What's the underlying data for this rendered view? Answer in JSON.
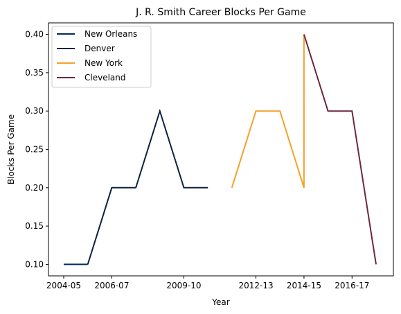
{
  "chart_data": {
    "type": "line",
    "title": "J. R. Smith Career Blocks Per Game",
    "xlabel": "Year",
    "ylabel": "Blocks Per Game",
    "x_ticks": [
      "2004-05",
      "2006-07",
      "2009-10",
      "2012-13",
      "2014-15",
      "2016-17"
    ],
    "y_ticks": [
      "0.10",
      "0.15",
      "0.20",
      "0.25",
      "0.30",
      "0.35",
      "0.40"
    ],
    "ylim": [
      0.085,
      0.415
    ],
    "legend_position": "upper-left",
    "grid": false,
    "series": [
      {
        "name": "New Orleans",
        "color": "#002B5C",
        "points": [
          {
            "season": "2004-05",
            "value": 0.1
          },
          {
            "season": "2005-06",
            "value": 0.1
          }
        ]
      },
      {
        "name": "Denver",
        "color": "#0E2240",
        "points": [
          {
            "season": "2005-06",
            "value": 0.1
          },
          {
            "season": "2006-07",
            "value": 0.2
          },
          {
            "season": "2007-08",
            "value": 0.2
          },
          {
            "season": "2008-09",
            "value": 0.3
          },
          {
            "season": "2009-10",
            "value": 0.2
          },
          {
            "season": "2010-11",
            "value": 0.2
          }
        ]
      },
      {
        "name": "New York",
        "color": "#F5A125",
        "points": [
          {
            "season": "2011-12",
            "value": 0.2
          },
          {
            "season": "2012-13",
            "value": 0.3
          },
          {
            "season": "2013-14",
            "value": 0.3
          },
          {
            "season": "2014-15",
            "value": 0.2
          },
          {
            "season": "2014-15",
            "value": 0.4
          }
        ]
      },
      {
        "name": "Cleveland",
        "color": "#6F263D",
        "points": [
          {
            "season": "2014-15",
            "value": 0.4
          },
          {
            "season": "2015-16",
            "value": 0.3
          },
          {
            "season": "2016-17",
            "value": 0.3
          },
          {
            "season": "2017-18",
            "value": 0.1
          }
        ]
      }
    ]
  }
}
